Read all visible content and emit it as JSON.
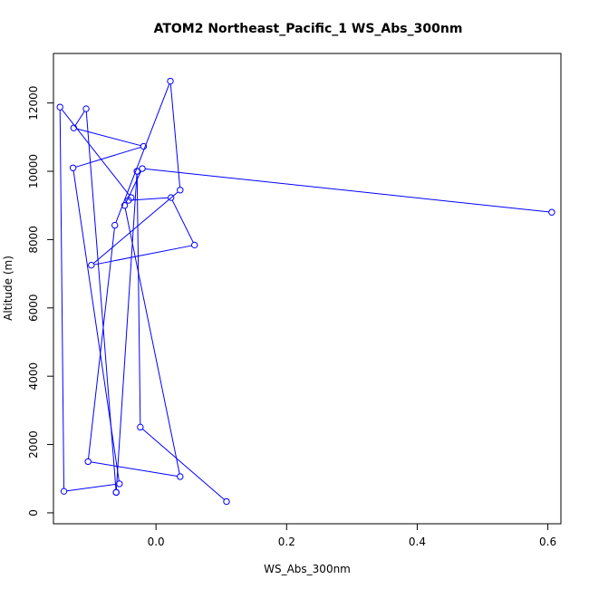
{
  "chart_data": {
    "type": "line",
    "title": "ATOM2 Northeast_Pacific_1 WS_Abs_300nm",
    "xlabel": "WS_Abs_300nm",
    "ylabel": "Altitude (m)",
    "xlim": [
      -0.157,
      0.62
    ],
    "ylim": [
      -320,
      13450
    ],
    "xticks": [
      0.0,
      0.2,
      0.4,
      0.6
    ],
    "xtick_labels": [
      "0.0",
      "0.2",
      "0.4",
      "0.6"
    ],
    "yticks": [
      0,
      2000,
      4000,
      6000,
      8000,
      10000,
      12000
    ],
    "ytick_labels": [
      "0",
      "2000",
      "4000",
      "6000",
      "8000",
      "10000",
      "12000"
    ],
    "grid": false,
    "series": [
      {
        "color": "#0000ff",
        "marker": "open-circle",
        "x": [
          0.108,
          -0.024,
          -0.029,
          -0.029,
          -0.061,
          -0.061,
          -0.107,
          -0.126,
          -0.019,
          -0.127,
          -0.056,
          -0.141,
          -0.147,
          -0.038,
          -0.042,
          0.023,
          0.059,
          -0.099,
          0.037,
          0.022,
          -0.063,
          -0.104,
          0.037,
          -0.048,
          -0.021,
          0.606
        ],
        "y": [
          330,
          2510,
          10000,
          10000,
          600,
          600,
          11830,
          11270,
          10730,
          10100,
          850,
          630,
          11880,
          9230,
          9150,
          9230,
          7840,
          7250,
          9450,
          12640,
          8420,
          1500,
          1060,
          9000,
          10080,
          8800
        ]
      }
    ]
  }
}
